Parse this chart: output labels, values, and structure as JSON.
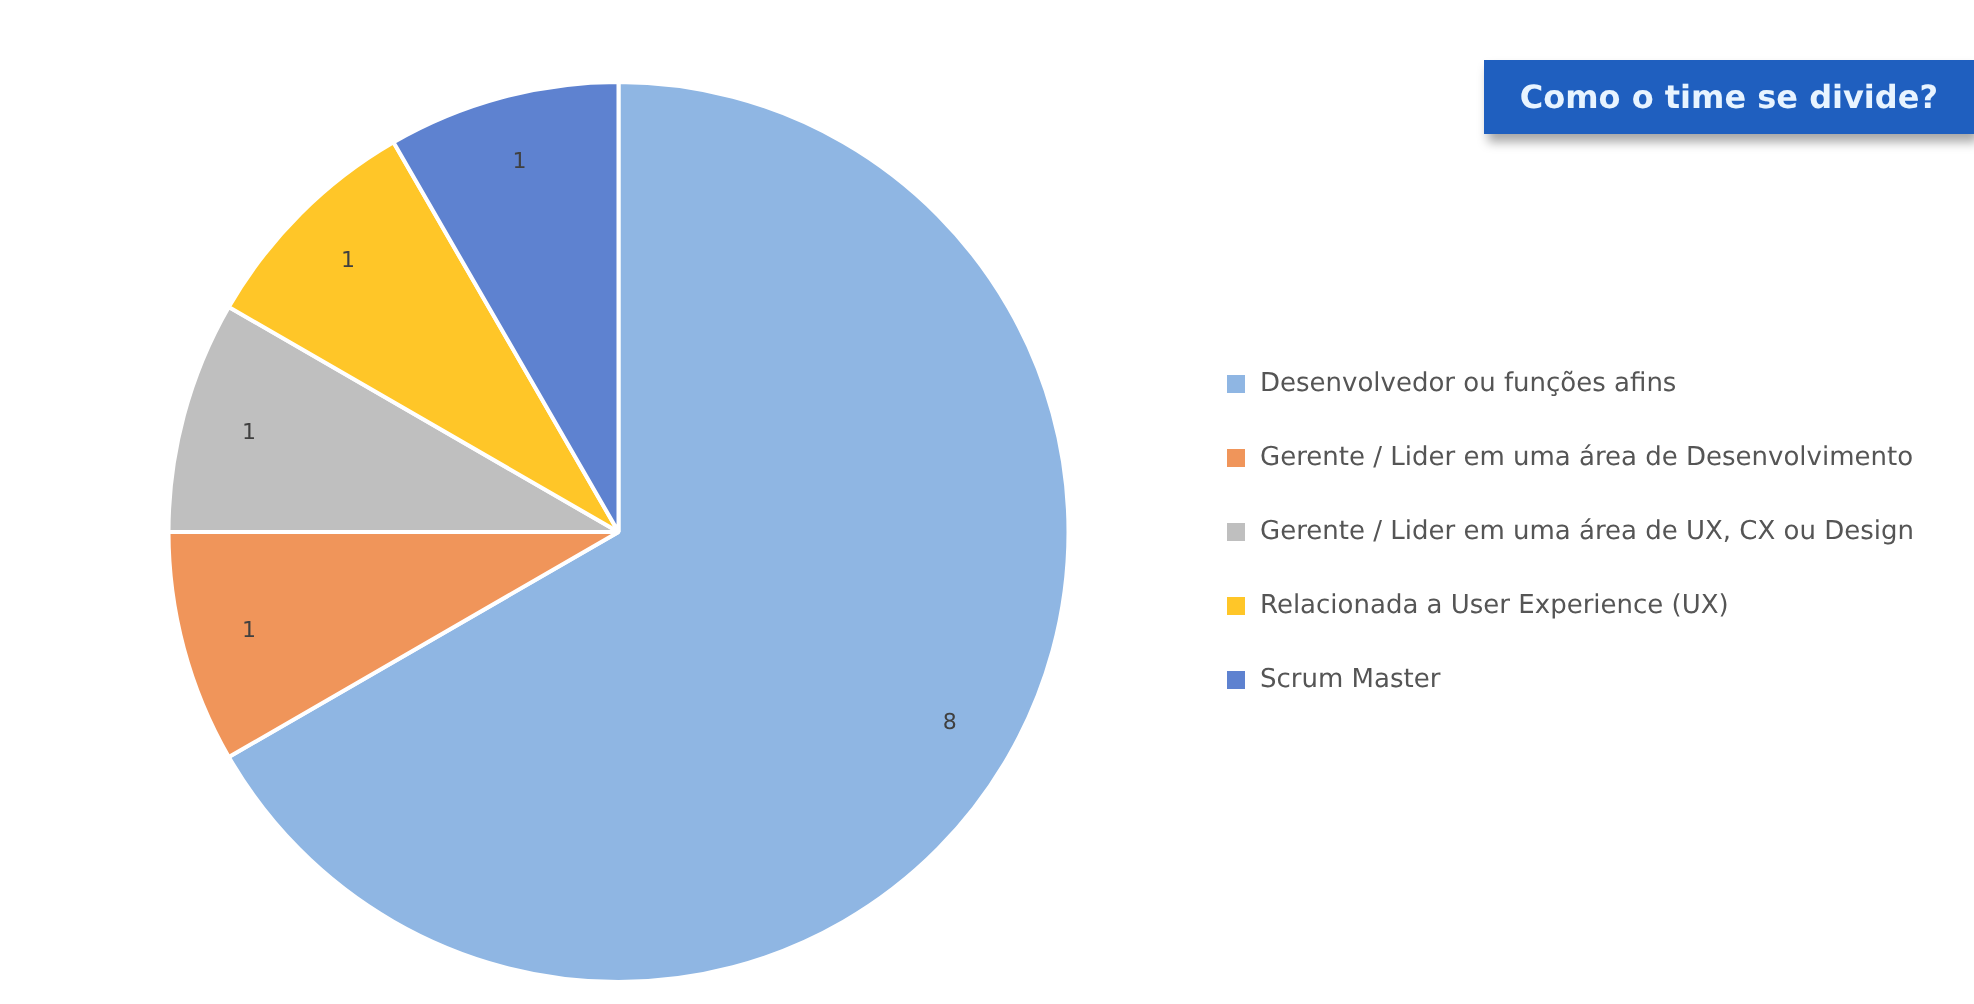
{
  "chart_data": {
    "type": "pie",
    "title": "Como o time se divide?",
    "categories": [
      "Desenvolvedor ou funções afins",
      "Gerente / Lider em uma área de Desenvolvimento",
      "Gerente / Lider em uma área de UX, CX ou Design",
      "Relacionada a User Experience (UX)",
      "Scrum Master"
    ],
    "values": [
      8,
      1,
      1,
      1,
      1
    ],
    "colors": [
      "#8fb6e3",
      "#f0955a",
      "#bfbfbf",
      "#ffc628",
      "#5e82d0"
    ],
    "data_labels": true,
    "legend": "right"
  }
}
